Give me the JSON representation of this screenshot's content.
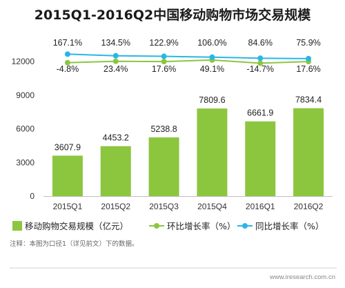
{
  "title": "2015Q1-2016Q2中国移动购物市场交易规模",
  "note": "注释：本图为口径1（详见前文）下的数据。",
  "source": "www.iresearch.com.cn",
  "chart_data": {
    "type": "bar",
    "categories": [
      "2015Q1",
      "2015Q2",
      "2015Q3",
      "2015Q4",
      "2016Q1",
      "2016Q2"
    ],
    "ylim": [
      0,
      12000
    ],
    "yticks": [
      0,
      3000,
      6000,
      9000,
      12000
    ],
    "grid": false,
    "legend_position": "bottom",
    "series": [
      {
        "name": "移动购物交易规模（亿元）",
        "kind": "bar",
        "color": "#8cc63f",
        "values": [
          3607.9,
          4453.2,
          5238.8,
          7809.6,
          6661.9,
          7834.4
        ],
        "labels": [
          "3607.9",
          "4453.2",
          "5238.8",
          "7809.6",
          "6661.9",
          "7834.4"
        ]
      },
      {
        "name": "环比增长率（%）",
        "kind": "line",
        "color": "#8cc63f",
        "values": [
          -4.8,
          23.4,
          17.6,
          49.1,
          -14.7,
          17.6
        ],
        "labels": [
          "-4.8%",
          "23.4%",
          "17.6%",
          "49.1%",
          "-14.7%",
          "17.6%"
        ]
      },
      {
        "name": "同比增长率（%）",
        "kind": "line",
        "color": "#29b6e6",
        "values": [
          167.1,
          134.5,
          122.9,
          106.0,
          84.6,
          75.9
        ],
        "labels": [
          "167.1%",
          "134.5%",
          "122.9%",
          "106.0%",
          "84.6%",
          "75.9%"
        ]
      }
    ]
  }
}
